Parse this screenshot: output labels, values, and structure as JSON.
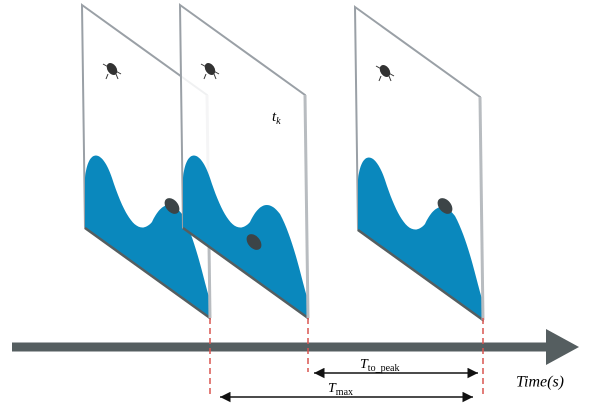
{
  "labels": {
    "frame_time": {
      "base": "t",
      "sub": "k"
    },
    "time_to_peak": {
      "base": "T",
      "sub": "to_peak"
    },
    "time_max": {
      "base": "T",
      "sub": "max"
    },
    "time_axis": "Time(s)"
  }
}
